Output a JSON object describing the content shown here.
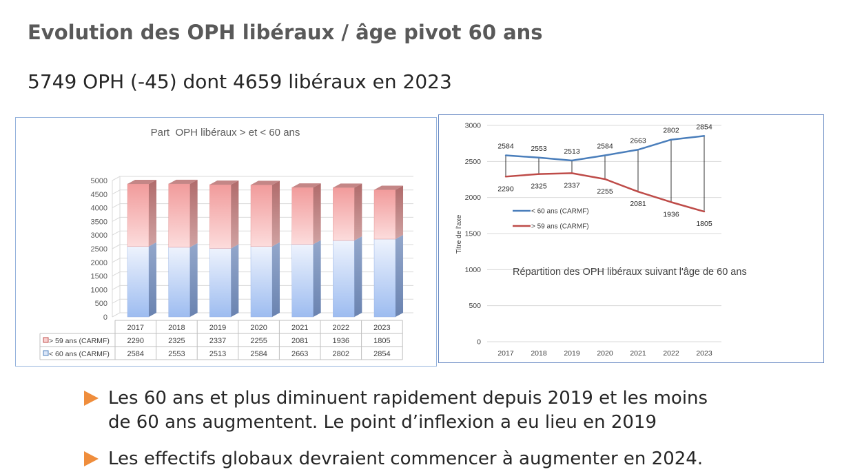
{
  "slide": {
    "title": "Evolution des OPH libéraux / âge pivot 60 ans",
    "subtitle": "5749 OPH (-45) dont 4659 libéraux en 2023",
    "bullets": [
      {
        "icon": "triangle-right-icon",
        "lines": [
          "Les 60 ans et plus diminuent rapidement depuis 2019 et les moins",
          "de 60 ans augmentent. Le point d’inflexion a eu lieu en 2019"
        ]
      },
      {
        "icon": "triangle-right-icon",
        "lines": [
          "Les effectifs globaux devraient commencer à augmenter en 2024."
        ]
      }
    ],
    "colors": {
      "title": "#595959",
      "text": "#262626",
      "bullet": "#ef8d3c",
      "panel_border": "#6688c2"
    }
  },
  "chart_data": [
    {
      "type": "bar",
      "stacked": true,
      "title": "Part  OPH libéraux > et < 60 ans",
      "categories": [
        "2017",
        "2018",
        "2019",
        "2020",
        "2021",
        "2022",
        "2023"
      ],
      "series": [
        {
          "name": "< 60 ans (CARMF)",
          "values": [
            2584,
            2553,
            2513,
            2584,
            2663,
            2802,
            2854
          ],
          "color": "#a3c0f0"
        },
        {
          "name": "> 59 ans (CARMF)",
          "values": [
            2290,
            2325,
            2337,
            2255,
            2081,
            1936,
            1805
          ],
          "color": "#f29e9e"
        }
      ],
      "yticks": [
        0,
        500,
        1000,
        1500,
        2000,
        2500,
        3000,
        3500,
        4000,
        4500,
        5000
      ],
      "ylim": [
        0,
        5000
      ],
      "legend": "bottom"
    },
    {
      "type": "line",
      "title": "Répartition des OPH libéraux suivant l'âge de 60 ans",
      "categories": [
        "2017",
        "2018",
        "2019",
        "2020",
        "2021",
        "2022",
        "2023"
      ],
      "series": [
        {
          "name": "< 60 ans (CARMF)",
          "values": [
            2584,
            2553,
            2513,
            2584,
            2663,
            2802,
            2854
          ],
          "color": "#4a7ebb"
        },
        {
          "name": "> 59 ans (CARMF)",
          "values": [
            2290,
            2325,
            2337,
            2255,
            2081,
            1936,
            1805
          ],
          "color": "#be4b48"
        }
      ],
      "yticks": [
        0,
        500,
        1000,
        1500,
        2000,
        2500,
        3000
      ],
      "ylim": [
        0,
        3000
      ],
      "ylabel": "Titre de l'axe",
      "legend": "left"
    }
  ]
}
